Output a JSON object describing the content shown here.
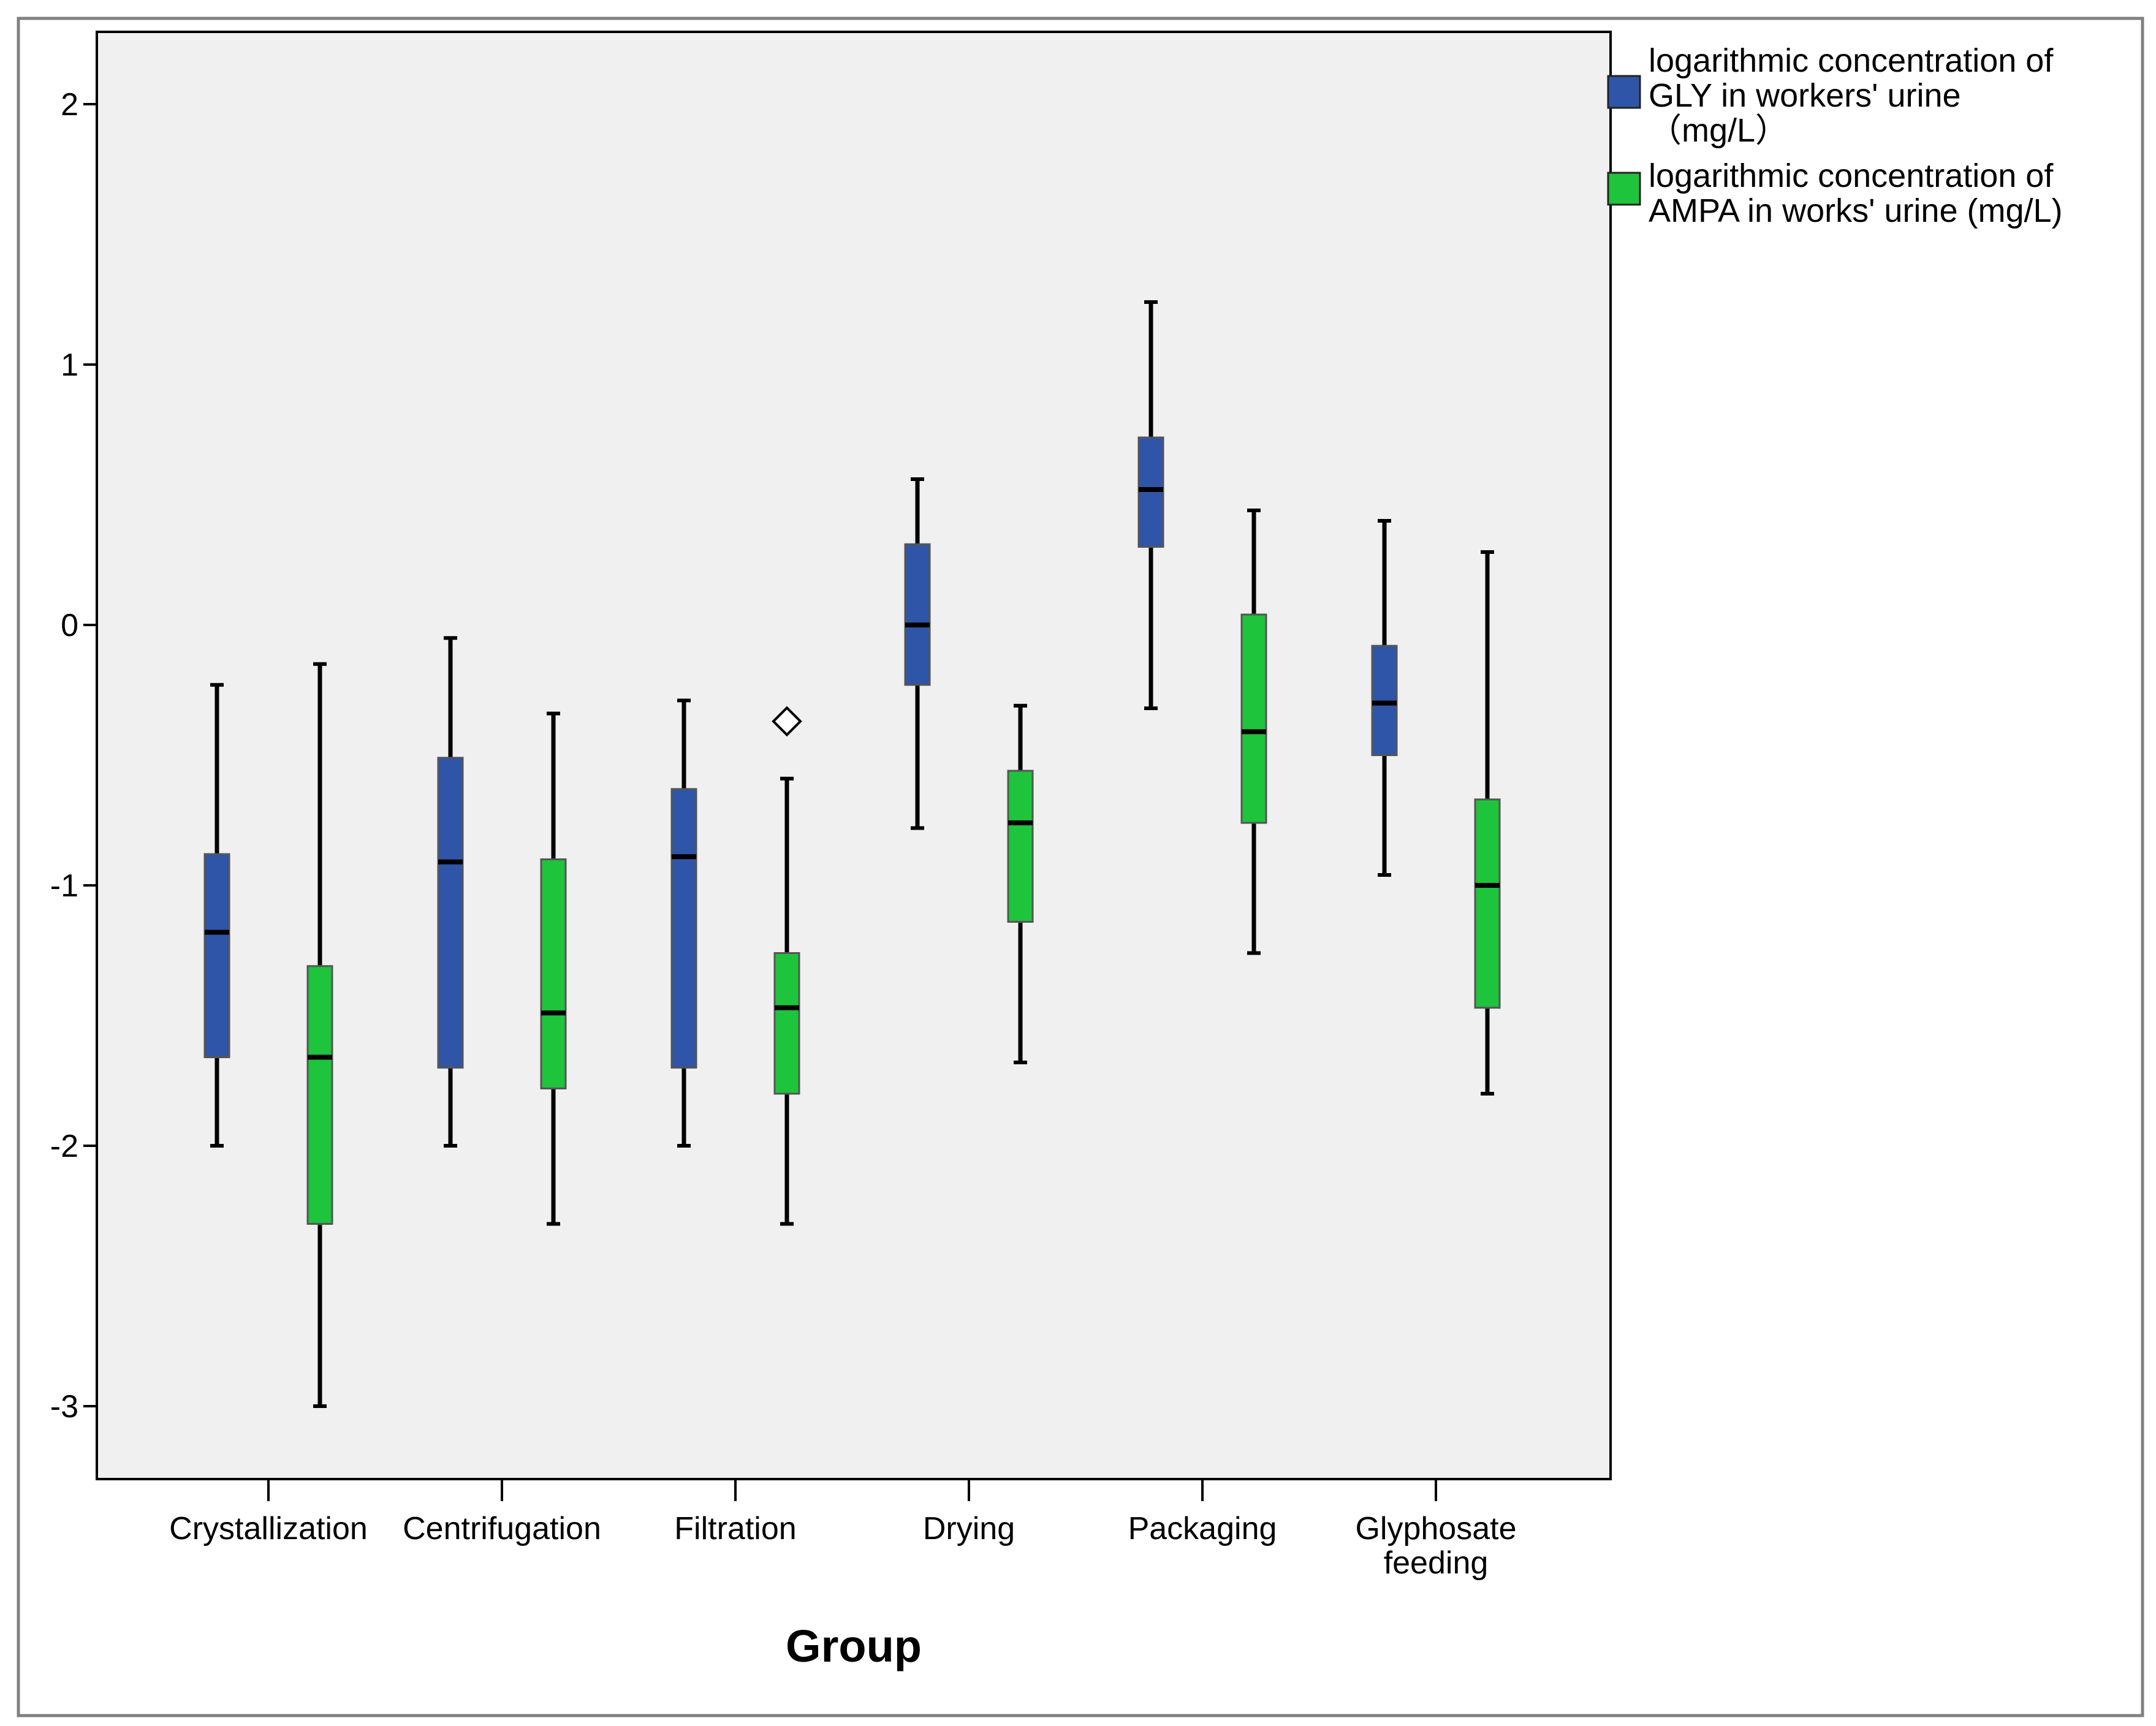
{
  "chart_data": {
    "type": "boxplot",
    "title": "",
    "xlabel": "Group",
    "ylabel": "",
    "ylim": [
      -3.28,
      2.28
    ],
    "yticks": [
      -3,
      -2,
      -1,
      0,
      1,
      2
    ],
    "ytick_labels": [
      "-3",
      "-2",
      "-1",
      "0",
      "1",
      "2"
    ],
    "grid": false,
    "legend_position": "right",
    "categories": [
      [
        "Crystallization"
      ],
      [
        "Centrifugation"
      ],
      [
        "Filtration"
      ],
      [
        "Drying"
      ],
      [
        "Packaging"
      ],
      [
        "Glyphosate",
        "feeding"
      ]
    ],
    "series": [
      {
        "name": "logarithmic concentration of GLY in workers' urine （mg/L）",
        "legend_lines": [
          "logarithmic concentration of",
          "GLY in workers' urine",
          "（mg/L）"
        ],
        "color": "#2e55a7",
        "boxes": [
          {
            "min": -2.0,
            "q1": -1.66,
            "median": -1.18,
            "q3": -0.88,
            "max": -0.23,
            "outliers": []
          },
          {
            "min": -2.0,
            "q1": -1.7,
            "median": -0.91,
            "q3": -0.51,
            "max": -0.05,
            "outliers": []
          },
          {
            "min": -2.0,
            "q1": -1.7,
            "median": -0.89,
            "q3": -0.63,
            "max": -0.29,
            "outliers": []
          },
          {
            "min": -0.78,
            "q1": -0.23,
            "median": 0.0,
            "q3": 0.31,
            "max": 0.56,
            "outliers": []
          },
          {
            "min": -0.32,
            "q1": 0.3,
            "median": 0.52,
            "q3": 0.72,
            "max": 1.24,
            "outliers": []
          },
          {
            "min": -0.96,
            "q1": -0.5,
            "median": -0.3,
            "q3": -0.08,
            "max": 0.4,
            "outliers": []
          }
        ]
      },
      {
        "name": "logarithmic concentration of AMPA in works' urine (mg/L)",
        "legend_lines": [
          "logarithmic concentration of",
          "AMPA in works' urine (mg/L)"
        ],
        "color": "#1dc43c",
        "boxes": [
          {
            "min": -3.0,
            "q1": -2.3,
            "median": -1.66,
            "q3": -1.31,
            "max": -0.15,
            "outliers": []
          },
          {
            "min": -2.3,
            "q1": -1.78,
            "median": -1.49,
            "q3": -0.9,
            "max": -0.34,
            "outliers": []
          },
          {
            "min": -2.3,
            "q1": -1.8,
            "median": -1.47,
            "q3": -1.26,
            "max": -0.59,
            "outliers": [
              -0.37
            ]
          },
          {
            "min": -1.68,
            "q1": -1.14,
            "median": -0.76,
            "q3": -0.56,
            "max": -0.31,
            "outliers": []
          },
          {
            "min": -1.26,
            "q1": -0.76,
            "median": -0.41,
            "q3": 0.04,
            "max": 0.44,
            "outliers": []
          },
          {
            "min": -1.8,
            "q1": -1.47,
            "median": -1.0,
            "q3": -0.67,
            "max": 0.28,
            "outliers": []
          }
        ]
      }
    ]
  },
  "colors": {
    "plot_background": "#f0f0f0",
    "axis": "#000000",
    "frame": "#808080",
    "median": "#000000"
  }
}
